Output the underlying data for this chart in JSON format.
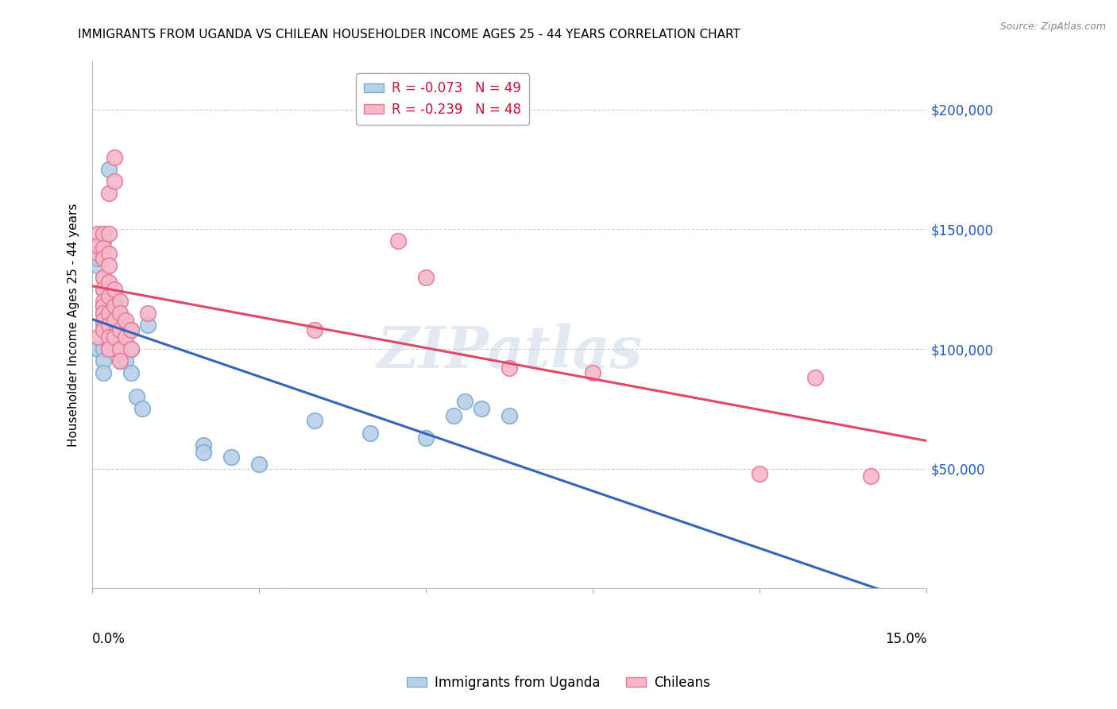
{
  "title": "IMMIGRANTS FROM UGANDA VS CHILEAN HOUSEHOLDER INCOME AGES 25 - 44 YEARS CORRELATION CHART",
  "source": "Source: ZipAtlas.com",
  "ylabel": "Householder Income Ages 25 - 44 years",
  "xmin": 0.0,
  "xmax": 0.15,
  "ymin": 0,
  "ymax": 220000,
  "yticks": [
    0,
    50000,
    100000,
    150000,
    200000
  ],
  "ytick_labels": [
    "",
    "$50,000",
    "$100,000",
    "$150,000",
    "$200,000"
  ],
  "uganda_color": "#b8d0e8",
  "chilean_color": "#f5b8c8",
  "uganda_edge": "#7aaad0",
  "chilean_edge": "#e87898",
  "regression_uganda_color": "#3366bb",
  "regression_chilean_color": "#e04868",
  "legend_r_uganda": "R = -0.073",
  "legend_n_uganda": "N = 49",
  "legend_r_chilean": "R = -0.239",
  "legend_n_chilean": "N = 48",
  "watermark": "ZIPatlas",
  "uganda_points": [
    [
      0.001,
      100000
    ],
    [
      0.001,
      135000
    ],
    [
      0.001,
      140000
    ],
    [
      0.001,
      138000
    ],
    [
      0.002,
      145000
    ],
    [
      0.002,
      142000
    ],
    [
      0.002,
      130000
    ],
    [
      0.002,
      125000
    ],
    [
      0.002,
      118000
    ],
    [
      0.002,
      115000
    ],
    [
      0.002,
      110000
    ],
    [
      0.002,
      100000
    ],
    [
      0.002,
      95000
    ],
    [
      0.002,
      90000
    ],
    [
      0.003,
      120000
    ],
    [
      0.003,
      115000
    ],
    [
      0.003,
      110000
    ],
    [
      0.003,
      108000
    ],
    [
      0.003,
      105000
    ],
    [
      0.003,
      100000
    ],
    [
      0.003,
      175000
    ],
    [
      0.004,
      120000
    ],
    [
      0.004,
      115000
    ],
    [
      0.004,
      110000
    ],
    [
      0.004,
      105000
    ],
    [
      0.005,
      113000
    ],
    [
      0.005,
      108000
    ],
    [
      0.005,
      100000
    ],
    [
      0.005,
      95000
    ],
    [
      0.006,
      110000
    ],
    [
      0.006,
      105000
    ],
    [
      0.006,
      95000
    ],
    [
      0.007,
      108000
    ],
    [
      0.007,
      100000
    ],
    [
      0.007,
      90000
    ],
    [
      0.008,
      80000
    ],
    [
      0.009,
      75000
    ],
    [
      0.01,
      110000
    ],
    [
      0.02,
      60000
    ],
    [
      0.02,
      57000
    ],
    [
      0.025,
      55000
    ],
    [
      0.03,
      52000
    ],
    [
      0.04,
      70000
    ],
    [
      0.05,
      65000
    ],
    [
      0.06,
      63000
    ],
    [
      0.065,
      72000
    ],
    [
      0.067,
      78000
    ],
    [
      0.07,
      75000
    ],
    [
      0.075,
      72000
    ]
  ],
  "chilean_points": [
    [
      0.001,
      105000
    ],
    [
      0.001,
      140000
    ],
    [
      0.001,
      148000
    ],
    [
      0.001,
      143000
    ],
    [
      0.002,
      148000
    ],
    [
      0.002,
      142000
    ],
    [
      0.002,
      138000
    ],
    [
      0.002,
      130000
    ],
    [
      0.002,
      125000
    ],
    [
      0.002,
      120000
    ],
    [
      0.002,
      118000
    ],
    [
      0.002,
      115000
    ],
    [
      0.002,
      112000
    ],
    [
      0.002,
      108000
    ],
    [
      0.003,
      165000
    ],
    [
      0.003,
      148000
    ],
    [
      0.003,
      140000
    ],
    [
      0.003,
      135000
    ],
    [
      0.003,
      128000
    ],
    [
      0.003,
      122000
    ],
    [
      0.003,
      115000
    ],
    [
      0.003,
      110000
    ],
    [
      0.003,
      105000
    ],
    [
      0.003,
      100000
    ],
    [
      0.004,
      180000
    ],
    [
      0.004,
      170000
    ],
    [
      0.004,
      125000
    ],
    [
      0.004,
      118000
    ],
    [
      0.004,
      112000
    ],
    [
      0.004,
      105000
    ],
    [
      0.005,
      120000
    ],
    [
      0.005,
      115000
    ],
    [
      0.005,
      108000
    ],
    [
      0.005,
      100000
    ],
    [
      0.005,
      95000
    ],
    [
      0.006,
      112000
    ],
    [
      0.006,
      105000
    ],
    [
      0.007,
      108000
    ],
    [
      0.007,
      100000
    ],
    [
      0.01,
      115000
    ],
    [
      0.04,
      108000
    ],
    [
      0.055,
      145000
    ],
    [
      0.06,
      130000
    ],
    [
      0.075,
      92000
    ],
    [
      0.09,
      90000
    ],
    [
      0.12,
      48000
    ],
    [
      0.13,
      88000
    ],
    [
      0.14,
      47000
    ]
  ]
}
